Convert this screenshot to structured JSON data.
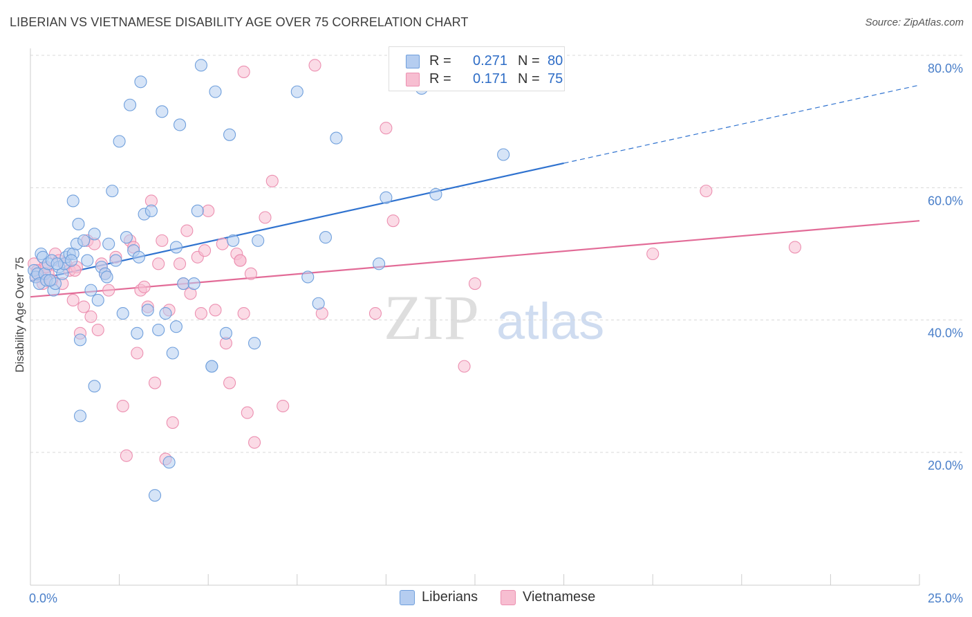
{
  "title": "LIBERIAN VS VIETNAMESE DISABILITY AGE OVER 75 CORRELATION CHART",
  "source": "Source: ZipAtlas.com",
  "watermark": {
    "zip": "ZIP",
    "atlas": "atlas"
  },
  "legend_top": {
    "rows": [
      {
        "r_label": "R =",
        "r_value": "0.271",
        "n_label": "N =",
        "n_value": "80",
        "color": "#6f9fdc"
      },
      {
        "r_label": "R =",
        "r_value": "0.171",
        "n_label": "N =",
        "n_value": "75",
        "color": "#f08cae"
      }
    ]
  },
  "legend_bottom": {
    "items": [
      {
        "label": "Liberians",
        "color": "#6f9fdc"
      },
      {
        "label": "Vietnamese",
        "color": "#f08cae"
      }
    ]
  },
  "colors": {
    "liberian_fill": "#b5cdf0",
    "liberian_stroke": "#6f9fdc",
    "liberian_line": "#2f72cf",
    "vietnamese_fill": "#f7bed1",
    "vietnamese_stroke": "#ec8fb0",
    "vietnamese_line": "#e26b97",
    "grid": "#d8d8d8",
    "axis_text": "#4a7fc9"
  },
  "chart_data": {
    "type": "scatter",
    "title": "LIBERIAN VS VIETNAMESE DISABILITY AGE OVER 75 CORRELATION CHART",
    "xlabel": "",
    "ylabel": "Disability Age Over 75",
    "x_unit": "%",
    "y_unit": "%",
    "xlim": [
      0,
      25
    ],
    "ylim": [
      0,
      83
    ],
    "x_ticks": [
      "0.0%",
      "25.0%"
    ],
    "y_ticks": [
      "20.0%",
      "40.0%",
      "60.0%",
      "80.0%"
    ],
    "y_tick_values": [
      20,
      40,
      60,
      80
    ],
    "grid": "horizontal-dashed",
    "legend_placement": "top-center",
    "series": [
      {
        "name": "Liberians",
        "r": 0.271,
        "n": 80,
        "trend": {
          "x0": 0,
          "y0": 45.9,
          "x1": 15,
          "y1": 63.7,
          "dashed_to_x": 25,
          "dashed_to_y": 75.5
        },
        "points": [
          [
            0.1,
            47.5
          ],
          [
            0.15,
            46.5
          ],
          [
            0.2,
            47.0
          ],
          [
            0.25,
            45.5
          ],
          [
            0.3,
            50.0
          ],
          [
            0.35,
            49.5
          ],
          [
            0.4,
            47.0
          ],
          [
            0.45,
            46.0
          ],
          [
            0.5,
            48.5
          ],
          [
            0.6,
            49.0
          ],
          [
            0.65,
            44.5
          ],
          [
            0.7,
            45.5
          ],
          [
            0.8,
            48.0
          ],
          [
            0.9,
            47.0
          ],
          [
            0.95,
            48.5
          ],
          [
            1.0,
            49.5
          ],
          [
            1.1,
            50.0
          ],
          [
            1.2,
            50.0
          ],
          [
            1.3,
            51.5
          ],
          [
            1.35,
            54.5
          ],
          [
            1.4,
            37.0
          ],
          [
            1.5,
            52.0
          ],
          [
            1.6,
            49.0
          ],
          [
            1.7,
            44.5
          ],
          [
            1.8,
            53.0
          ],
          [
            1.9,
            43.0
          ],
          [
            1.2,
            58.0
          ],
          [
            2.0,
            48.0
          ],
          [
            2.1,
            47.0
          ],
          [
            2.2,
            51.5
          ],
          [
            2.3,
            59.5
          ],
          [
            2.4,
            49.0
          ],
          [
            2.5,
            67.0
          ],
          [
            2.6,
            41.0
          ],
          [
            2.7,
            52.5
          ],
          [
            2.9,
            50.5
          ],
          [
            2.8,
            72.5
          ],
          [
            3.1,
            76.0
          ],
          [
            3.2,
            56.0
          ],
          [
            3.3,
            41.5
          ],
          [
            3.4,
            56.5
          ],
          [
            3.5,
            13.5
          ],
          [
            3.6,
            38.5
          ],
          [
            3.7,
            71.5
          ],
          [
            3.8,
            41.0
          ],
          [
            3.9,
            18.5
          ],
          [
            4.0,
            35.0
          ],
          [
            4.1,
            39.0
          ],
          [
            4.2,
            69.5
          ],
          [
            4.3,
            45.5
          ],
          [
            4.6,
            45.5
          ],
          [
            4.7,
            56.5
          ],
          [
            4.8,
            78.5
          ],
          [
            5.1,
            33.0
          ],
          [
            5.2,
            74.5
          ],
          [
            5.5,
            38.0
          ],
          [
            5.6,
            68.0
          ],
          [
            5.7,
            52.0
          ],
          [
            6.3,
            36.5
          ],
          [
            6.4,
            52.0
          ],
          [
            7.5,
            74.5
          ],
          [
            7.8,
            46.5
          ],
          [
            8.1,
            42.5
          ],
          [
            8.3,
            52.5
          ],
          [
            8.6,
            67.5
          ],
          [
            9.8,
            48.5
          ],
          [
            10.0,
            58.5
          ],
          [
            11.0,
            75.0
          ],
          [
            11.4,
            59.0
          ],
          [
            13.3,
            65.0
          ],
          [
            1.4,
            25.5
          ],
          [
            1.8,
            30.0
          ],
          [
            3.0,
            38.0
          ],
          [
            2.15,
            46.5
          ],
          [
            0.55,
            46.0
          ],
          [
            0.75,
            48.5
          ],
          [
            1.15,
            49.0
          ],
          [
            5.1,
            33.0
          ],
          [
            4.1,
            51.0
          ],
          [
            3.05,
            49.5
          ]
        ]
      },
      {
        "name": "Vietnamese",
        "r": 0.171,
        "n": 75,
        "trend": {
          "x0": 0,
          "y0": 43.5,
          "x1": 25,
          "y1": 55.0
        },
        "points": [
          [
            0.1,
            48.5
          ],
          [
            0.2,
            47.5
          ],
          [
            0.3,
            46.5
          ],
          [
            0.35,
            45.5
          ],
          [
            0.4,
            48.0
          ],
          [
            0.5,
            47.0
          ],
          [
            0.6,
            46.0
          ],
          [
            0.7,
            50.0
          ],
          [
            0.8,
            49.0
          ],
          [
            0.9,
            45.5
          ],
          [
            1.0,
            48.5
          ],
          [
            1.1,
            47.5
          ],
          [
            1.2,
            43.0
          ],
          [
            1.3,
            48.0
          ],
          [
            1.4,
            38.0
          ],
          [
            1.5,
            42.0
          ],
          [
            1.6,
            52.0
          ],
          [
            1.7,
            40.5
          ],
          [
            1.8,
            51.5
          ],
          [
            1.9,
            38.5
          ],
          [
            2.0,
            48.5
          ],
          [
            2.2,
            44.5
          ],
          [
            2.4,
            49.5
          ],
          [
            2.6,
            27.0
          ],
          [
            2.7,
            19.5
          ],
          [
            2.8,
            52.0
          ],
          [
            2.9,
            51.0
          ],
          [
            3.0,
            35.0
          ],
          [
            3.1,
            44.5
          ],
          [
            3.2,
            45.0
          ],
          [
            3.3,
            42.0
          ],
          [
            3.4,
            58.0
          ],
          [
            3.5,
            30.5
          ],
          [
            3.6,
            48.5
          ],
          [
            3.7,
            52.0
          ],
          [
            3.8,
            19.0
          ],
          [
            3.9,
            41.5
          ],
          [
            4.0,
            24.5
          ],
          [
            4.2,
            48.5
          ],
          [
            4.4,
            53.5
          ],
          [
            4.5,
            44.0
          ],
          [
            4.7,
            49.5
          ],
          [
            4.8,
            41.0
          ],
          [
            4.9,
            50.5
          ],
          [
            5.0,
            56.5
          ],
          [
            5.2,
            41.5
          ],
          [
            5.4,
            51.5
          ],
          [
            5.5,
            36.5
          ],
          [
            5.6,
            30.5
          ],
          [
            5.8,
            50.0
          ],
          [
            5.9,
            49.0
          ],
          [
            6.0,
            41.0
          ],
          [
            6.1,
            26.0
          ],
          [
            6.2,
            47.0
          ],
          [
            6.3,
            21.5
          ],
          [
            6.6,
            55.5
          ],
          [
            6.8,
            61.0
          ],
          [
            7.1,
            27.0
          ],
          [
            6.0,
            77.5
          ],
          [
            8.0,
            78.5
          ],
          [
            8.2,
            41.0
          ],
          [
            9.7,
            41.0
          ],
          [
            10.0,
            69.0
          ],
          [
            10.2,
            55.0
          ],
          [
            12.2,
            33.0
          ],
          [
            12.5,
            45.5
          ],
          [
            17.5,
            50.0
          ],
          [
            19.0,
            59.5
          ],
          [
            21.5,
            51.0
          ],
          [
            0.15,
            46.5
          ],
          [
            0.45,
            48.0
          ],
          [
            1.25,
            47.5
          ],
          [
            2.1,
            47.0
          ],
          [
            4.3,
            45.5
          ],
          [
            5.9,
            49.0
          ]
        ]
      }
    ]
  }
}
